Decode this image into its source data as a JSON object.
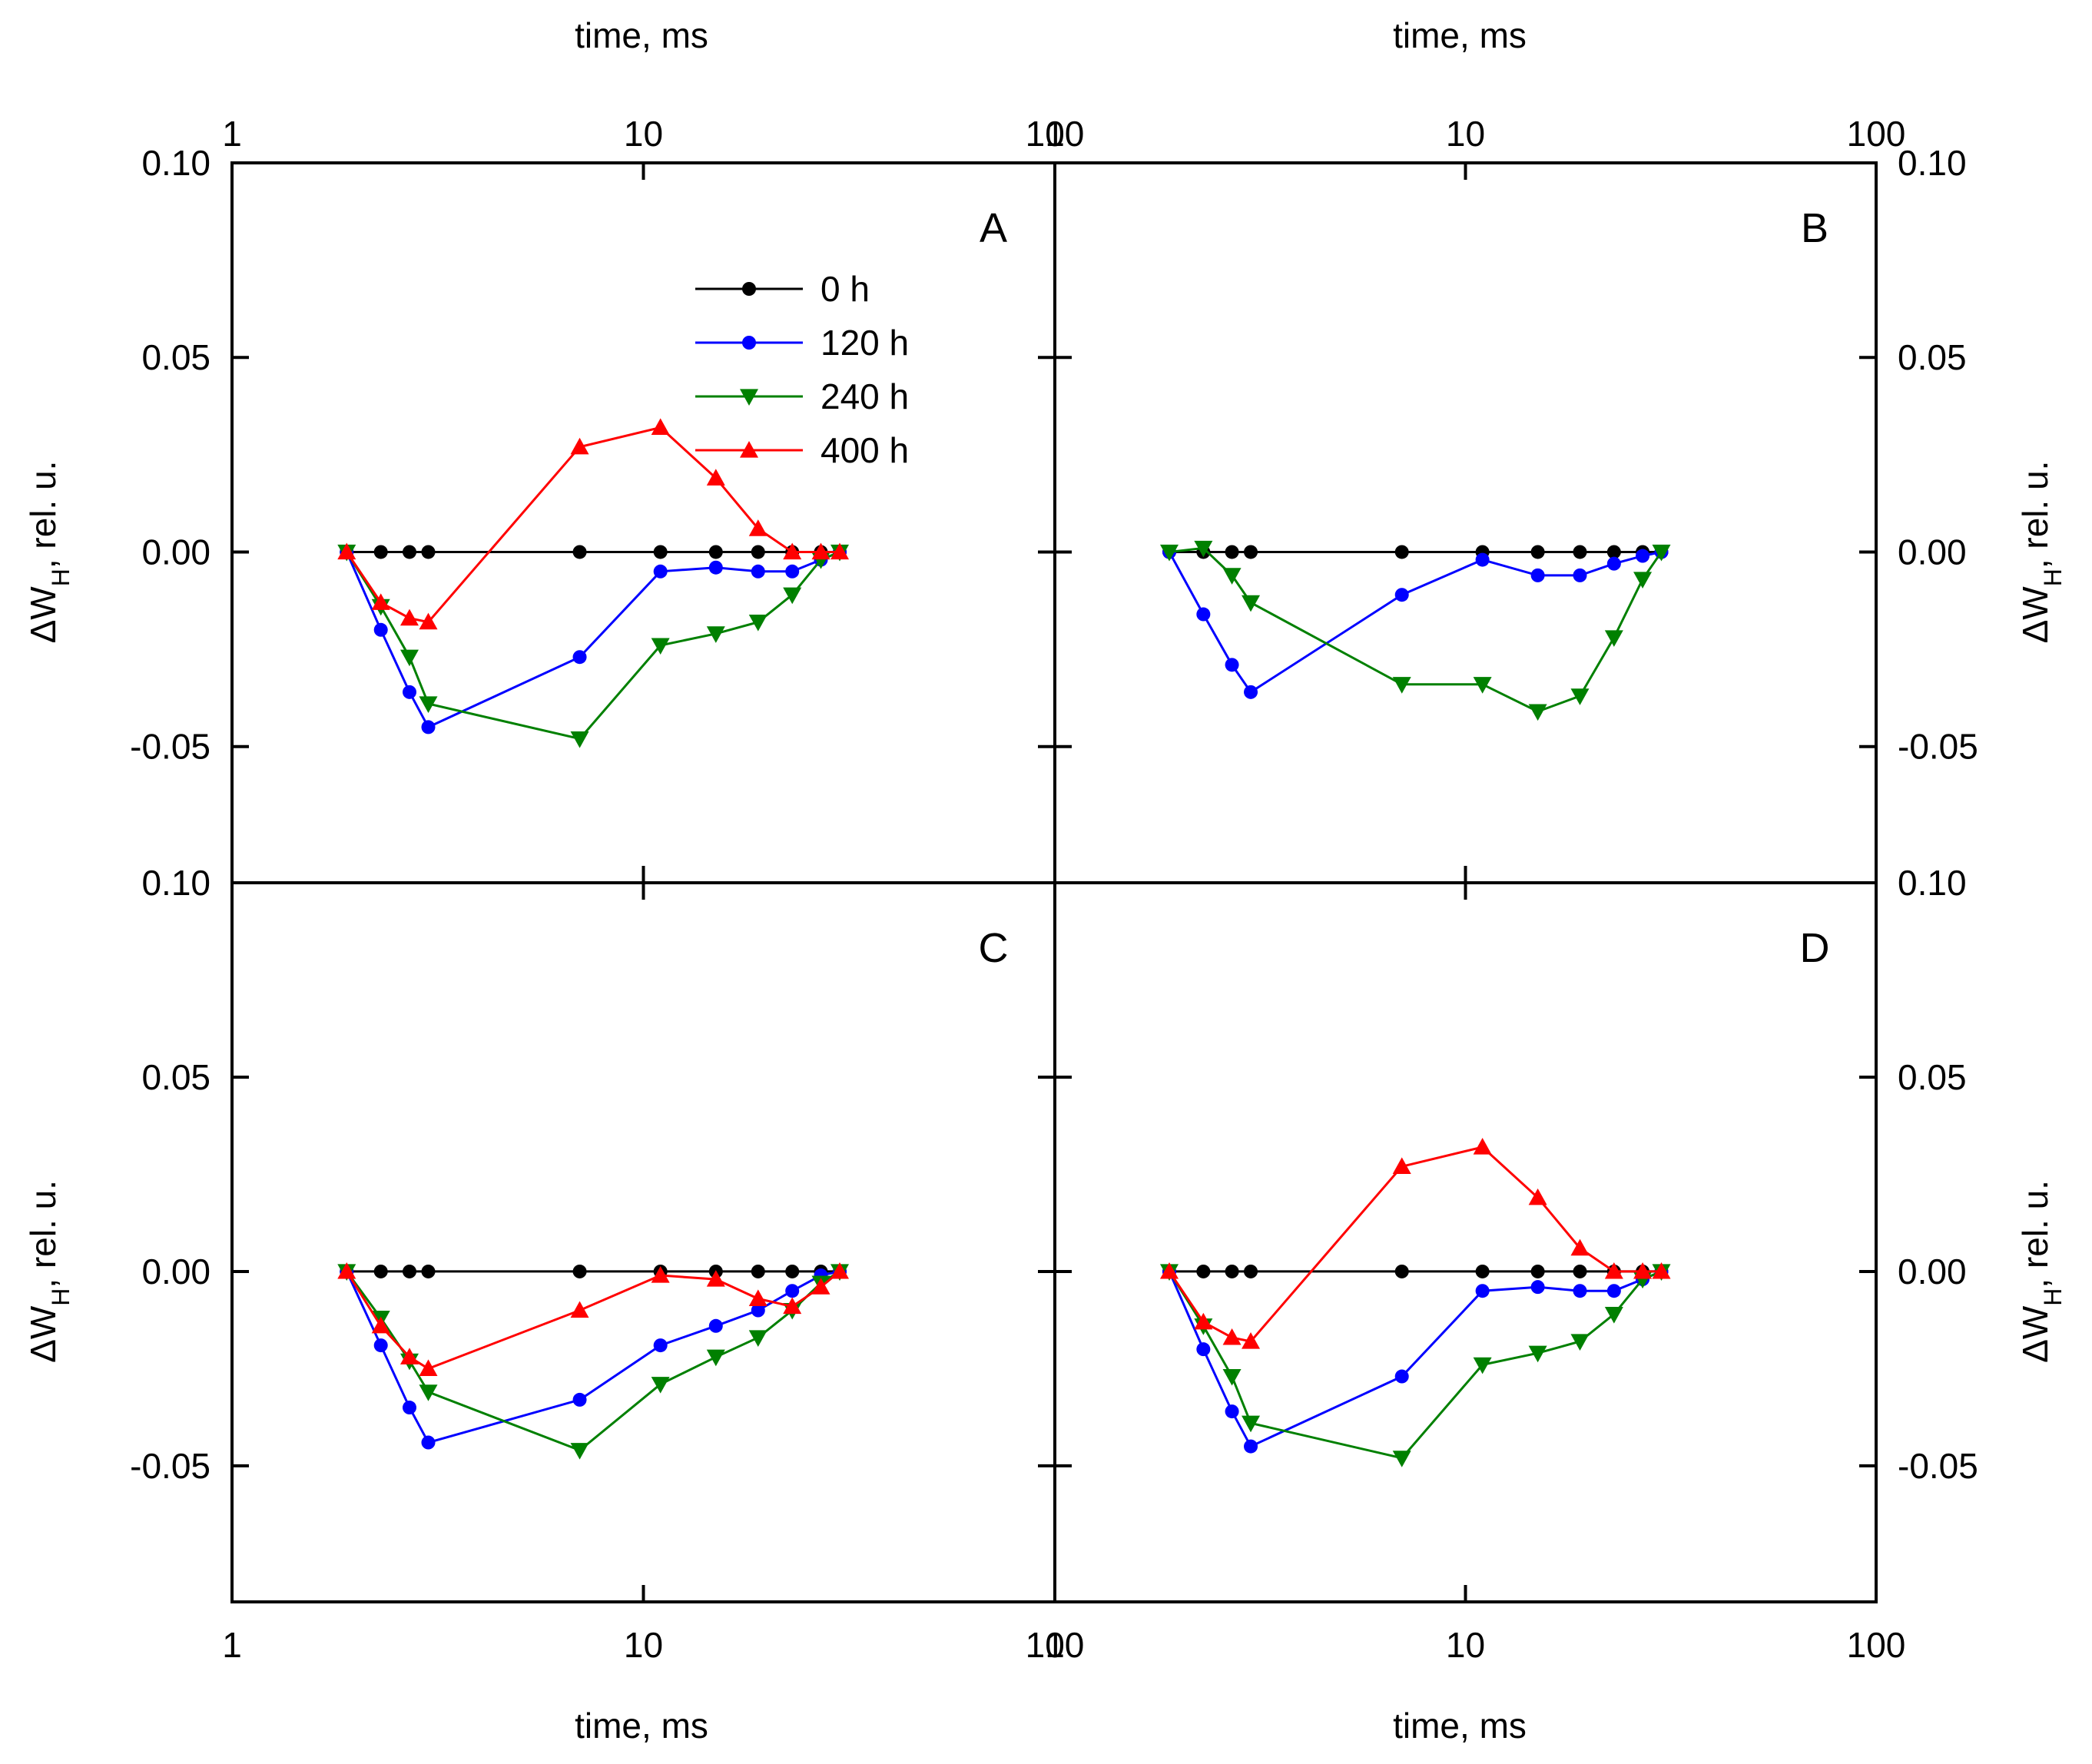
{
  "axis_labels": {
    "x": "time, ms",
    "y_prefix": "ΔW",
    "y_subscript": "H",
    "y_suffix": ", rel. u."
  },
  "x_tick_labels": [
    "1",
    "10",
    "100"
  ],
  "y_tick_labels": {
    "top": "0.10",
    "mid_high": "0.05",
    "zero": "0.00",
    "mid_low": "-0.05",
    "bottom": "0.10"
  },
  "colors": {
    "0 h": "#000000",
    "120 h": "#0000ff",
    "240 h": "#008000",
    "400 h": "#ff0000"
  },
  "legend": [
    "0 h",
    "120 h",
    "240 h",
    "400 h"
  ],
  "chart_data": [
    {
      "panel": "A",
      "type": "line",
      "x_scale": "log",
      "xlim": [
        1,
        100
      ],
      "ylim": [
        -0.085,
        0.1
      ],
      "legend_position": "top-center",
      "series": [
        {
          "name": "0 h",
          "marker": "circle",
          "x": [
            1.9,
            2.3,
            2.7,
            3.0,
            7.0,
            11.0,
            15.0,
            19.0,
            23.0,
            27.0,
            30.0
          ],
          "y": [
            0,
            0,
            0,
            0,
            0,
            0,
            0,
            0,
            0,
            0,
            0
          ]
        },
        {
          "name": "120 h",
          "marker": "circle",
          "x": [
            1.9,
            2.3,
            2.7,
            3.0,
            7.0,
            11.0,
            15.0,
            19.0,
            23.0,
            27.0,
            30.0
          ],
          "y": [
            0,
            -0.02,
            -0.036,
            -0.045,
            -0.027,
            -0.005,
            -0.004,
            -0.005,
            -0.005,
            -0.002,
            0
          ]
        },
        {
          "name": "240 h",
          "marker": "triangle-down",
          "x": [
            1.9,
            2.3,
            2.7,
            3.0,
            7.0,
            11.0,
            15.0,
            19.0,
            23.0,
            27.0,
            30.0
          ],
          "y": [
            0,
            -0.014,
            -0.027,
            -0.039,
            -0.048,
            -0.024,
            -0.021,
            -0.018,
            -0.011,
            -0.002,
            0
          ]
        },
        {
          "name": "400 h",
          "marker": "triangle-up",
          "x": [
            1.9,
            2.3,
            2.7,
            3.0,
            7.0,
            11.0,
            15.0,
            19.0,
            23.0,
            27.0,
            30.0
          ],
          "y": [
            0,
            -0.013,
            -0.017,
            -0.018,
            0.027,
            0.032,
            0.019,
            0.006,
            0.0,
            0.0,
            0
          ]
        }
      ]
    },
    {
      "panel": "B",
      "type": "line",
      "x_scale": "log",
      "xlim": [
        1,
        100
      ],
      "ylim": [
        -0.085,
        0.1
      ],
      "series": [
        {
          "name": "0 h",
          "marker": "circle",
          "x": [
            1.9,
            2.3,
            2.7,
            3.0,
            7.0,
            11.0,
            15.0,
            19.0,
            23.0,
            27.0,
            30.0
          ],
          "y": [
            0,
            0,
            0,
            0,
            0,
            0,
            0,
            0,
            0,
            0,
            0
          ]
        },
        {
          "name": "120 h",
          "marker": "circle",
          "x": [
            1.9,
            2.3,
            2.7,
            3.0,
            7.0,
            11.0,
            15.0,
            19.0,
            23.0,
            27.0,
            30.0
          ],
          "y": [
            0,
            -0.016,
            -0.029,
            -0.036,
            -0.011,
            -0.002,
            -0.006,
            -0.006,
            -0.003,
            -0.001,
            0
          ]
        },
        {
          "name": "240 h",
          "marker": "triangle-down",
          "x": [
            1.9,
            2.3,
            2.7,
            3.0,
            7.0,
            11.0,
            15.0,
            19.0,
            23.0,
            27.0,
            30.0
          ],
          "y": [
            0,
            0.001,
            -0.006,
            -0.013,
            -0.034,
            -0.034,
            -0.041,
            -0.037,
            -0.022,
            -0.007,
            0
          ]
        }
      ]
    },
    {
      "panel": "C",
      "type": "line",
      "x_scale": "log",
      "xlim": [
        1,
        100
      ],
      "ylim": [
        -0.085,
        0.1
      ],
      "series": [
        {
          "name": "0 h",
          "marker": "circle",
          "x": [
            1.9,
            2.3,
            2.7,
            3.0,
            7.0,
            11.0,
            15.0,
            19.0,
            23.0,
            27.0,
            30.0
          ],
          "y": [
            0,
            0,
            0,
            0,
            0,
            0,
            0,
            0,
            0,
            0,
            0
          ]
        },
        {
          "name": "120 h",
          "marker": "circle",
          "x": [
            1.9,
            2.3,
            2.7,
            3.0,
            7.0,
            11.0,
            15.0,
            19.0,
            23.0,
            27.0,
            30.0
          ],
          "y": [
            0,
            -0.019,
            -0.035,
            -0.044,
            -0.033,
            -0.019,
            -0.014,
            -0.01,
            -0.005,
            -0.001,
            0
          ]
        },
        {
          "name": "240 h",
          "marker": "triangle-down",
          "x": [
            1.9,
            2.3,
            2.7,
            3.0,
            7.0,
            11.0,
            15.0,
            19.0,
            23.0,
            27.0,
            30.0
          ],
          "y": [
            0,
            -0.012,
            -0.023,
            -0.031,
            -0.046,
            -0.029,
            -0.022,
            -0.017,
            -0.01,
            -0.003,
            0
          ]
        },
        {
          "name": "400 h",
          "marker": "triangle-up",
          "x": [
            1.9,
            2.3,
            2.7,
            3.0,
            7.0,
            11.0,
            15.0,
            19.0,
            23.0,
            27.0,
            30.0
          ],
          "y": [
            0,
            -0.014,
            -0.022,
            -0.025,
            -0.01,
            -0.001,
            -0.002,
            -0.007,
            -0.009,
            -0.004,
            0
          ]
        }
      ]
    },
    {
      "panel": "D",
      "type": "line",
      "x_scale": "log",
      "xlim": [
        1,
        100
      ],
      "ylim": [
        -0.085,
        0.1
      ],
      "series": [
        {
          "name": "0 h",
          "marker": "circle",
          "x": [
            1.9,
            2.3,
            2.7,
            3.0,
            7.0,
            11.0,
            15.0,
            19.0,
            23.0,
            27.0,
            30.0
          ],
          "y": [
            0,
            0,
            0,
            0,
            0,
            0,
            0,
            0,
            0,
            0,
            0
          ]
        },
        {
          "name": "120 h",
          "marker": "circle",
          "x": [
            1.9,
            2.3,
            2.7,
            3.0,
            7.0,
            11.0,
            15.0,
            19.0,
            23.0,
            27.0,
            30.0
          ],
          "y": [
            0,
            -0.02,
            -0.036,
            -0.045,
            -0.027,
            -0.005,
            -0.004,
            -0.005,
            -0.005,
            -0.002,
            0
          ]
        },
        {
          "name": "240 h",
          "marker": "triangle-down",
          "x": [
            1.9,
            2.3,
            2.7,
            3.0,
            7.0,
            11.0,
            15.0,
            19.0,
            23.0,
            27.0,
            30.0
          ],
          "y": [
            0,
            -0.014,
            -0.027,
            -0.039,
            -0.048,
            -0.024,
            -0.021,
            -0.018,
            -0.011,
            -0.002,
            0
          ]
        },
        {
          "name": "400 h",
          "marker": "triangle-up",
          "x": [
            1.9,
            2.3,
            2.7,
            3.0,
            7.0,
            11.0,
            15.0,
            19.0,
            23.0,
            27.0,
            30.0
          ],
          "y": [
            0,
            -0.013,
            -0.017,
            -0.018,
            0.027,
            0.032,
            0.019,
            0.006,
            0.0,
            0.0,
            0
          ]
        }
      ]
    }
  ]
}
